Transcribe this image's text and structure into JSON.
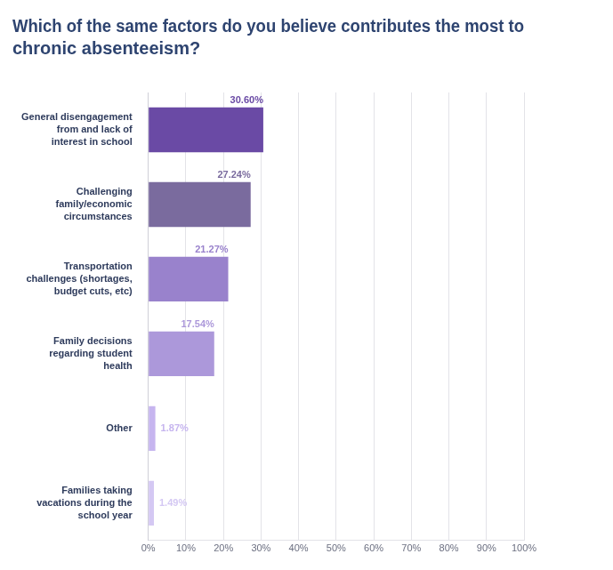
{
  "chart_data": {
    "type": "bar",
    "orientation": "horizontal",
    "title": "Which of the same factors do you believe contributes the most to chronic absenteeism?",
    "categories": [
      "General disengagement from and lack of interest in school",
      "Challenging family/economic circumstances",
      "Transportation challenges (shortages, budget cuts, etc)",
      "Family decisions regarding student health",
      "Other",
      "Families taking vacations during the school year"
    ],
    "values": [
      30.6,
      27.24,
      21.27,
      17.54,
      1.87,
      1.49
    ],
    "value_labels": [
      "30.60%",
      "27.24%",
      "21.27%",
      "17.54%",
      "1.87%",
      "1.49%"
    ],
    "colors": [
      "#6a4aa5",
      "#7a6b9e",
      "#9982cc",
      "#ac98da",
      "#c6b5ef",
      "#d4c8f3"
    ],
    "xlim": [
      0,
      100
    ],
    "xticks": [
      {
        "value": 0,
        "label": "0%"
      },
      {
        "value": 10,
        "label": "10%"
      },
      {
        "value": 20,
        "label": "20%"
      },
      {
        "value": 30,
        "label": "30%"
      },
      {
        "value": 40,
        "label": "40%"
      },
      {
        "value": 50,
        "label": "50%"
      },
      {
        "value": 60,
        "label": "60%"
      },
      {
        "value": 70,
        "label": "70%"
      },
      {
        "value": 80,
        "label": "80%"
      },
      {
        "value": 90,
        "label": "90%"
      },
      {
        "value": 100,
        "label": "100%"
      }
    ],
    "grid": true,
    "data_labels": true
  }
}
